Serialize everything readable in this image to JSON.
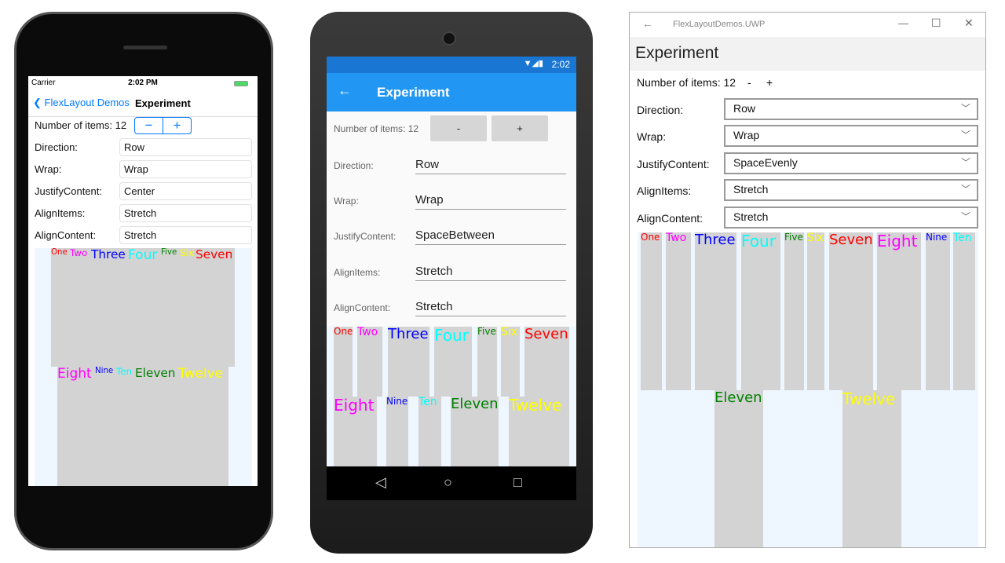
{
  "items": [
    {
      "label": "One",
      "color": "#ff0000"
    },
    {
      "label": "Two",
      "color": "#ff00ff"
    },
    {
      "label": "Three",
      "color": "#0000ff"
    },
    {
      "label": "Four",
      "color": "#00ffff"
    },
    {
      "label": "Five",
      "color": "#008000"
    },
    {
      "label": "Six",
      "color": "#ffff00"
    },
    {
      "label": "Seven",
      "color": "#ff0000"
    },
    {
      "label": "Eight",
      "color": "#ff00ff"
    },
    {
      "label": "Nine",
      "color": "#0000ff"
    },
    {
      "label": "Ten",
      "color": "#00ffff"
    },
    {
      "label": "Eleven",
      "color": "#008000"
    },
    {
      "label": "Twelve",
      "color": "#ffff00"
    }
  ],
  "labels": {
    "count": "Number of items:",
    "count_value": "12",
    "direction": "Direction:",
    "wrap": "Wrap:",
    "justify": "JustifyContent:",
    "align_items": "AlignItems:",
    "align_content": "AlignContent:",
    "minus": "-",
    "plus": "+",
    "minus_ios": "−",
    "plus_ios": "+"
  },
  "ios": {
    "carrier": "Carrier",
    "time": "2:02 PM",
    "back": "FlexLayout Demos",
    "title": "Experiment",
    "values": {
      "direction": "Row",
      "wrap": "Wrap",
      "justify": "Center",
      "align_items": "Stretch",
      "align_content": "Stretch"
    }
  },
  "android": {
    "time": "2:02",
    "title": "Experiment",
    "values": {
      "direction": "Row",
      "wrap": "Wrap",
      "justify": "SpaceBetween",
      "align_items": "Stretch",
      "align_content": "Stretch"
    }
  },
  "uwp": {
    "window_title": "FlexLayoutDemos.UWP",
    "title": "Experiment",
    "values": {
      "direction": "Row",
      "wrap": "Wrap",
      "justify": "SpaceEvenly",
      "align_items": "Stretch",
      "align_content": "Stretch"
    }
  },
  "colors": {
    "ios_accent": "#007aff",
    "android_primary": "#2196f3",
    "android_status": "#1976d2",
    "flex_bg": "#eef6ff",
    "item_bg": "#d3d3d3"
  }
}
